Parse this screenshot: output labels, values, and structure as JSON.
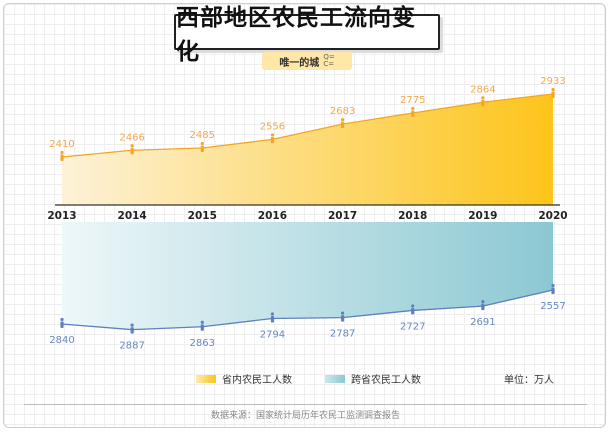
{
  "title": "西部地区农民工流向变化",
  "brand": {
    "name": "唯一的城",
    "icon_text": "Q=\nC="
  },
  "unit_label": "单位：万人",
  "source": "数据来源：国家统计局历年农民工监测调查报告",
  "colors": {
    "series1_line": "#f6a623",
    "series1_fill_from": "#fdf2d8",
    "series1_fill_to": "#fdc41a",
    "series1_label": "#f3a94c",
    "series2_line": "#5f7fbf",
    "series2_fill_from": "#eef7f9",
    "series2_fill_to": "#8cc8d2",
    "series2_label": "#6688c0"
  },
  "chart_data": {
    "type": "area",
    "categories": [
      "2013",
      "2014",
      "2015",
      "2016",
      "2017",
      "2018",
      "2019",
      "2020"
    ],
    "series": [
      {
        "name": "省内农民工人数",
        "values": [
          2410,
          2466,
          2485,
          2556,
          2683,
          2775,
          2864,
          2933
        ]
      },
      {
        "name": "跨省农民工人数",
        "values": [
          2840,
          2887,
          2863,
          2794,
          2787,
          2727,
          2691,
          2557
        ]
      }
    ],
    "title": "西部地区农民工流向变化",
    "unit": "万人"
  }
}
